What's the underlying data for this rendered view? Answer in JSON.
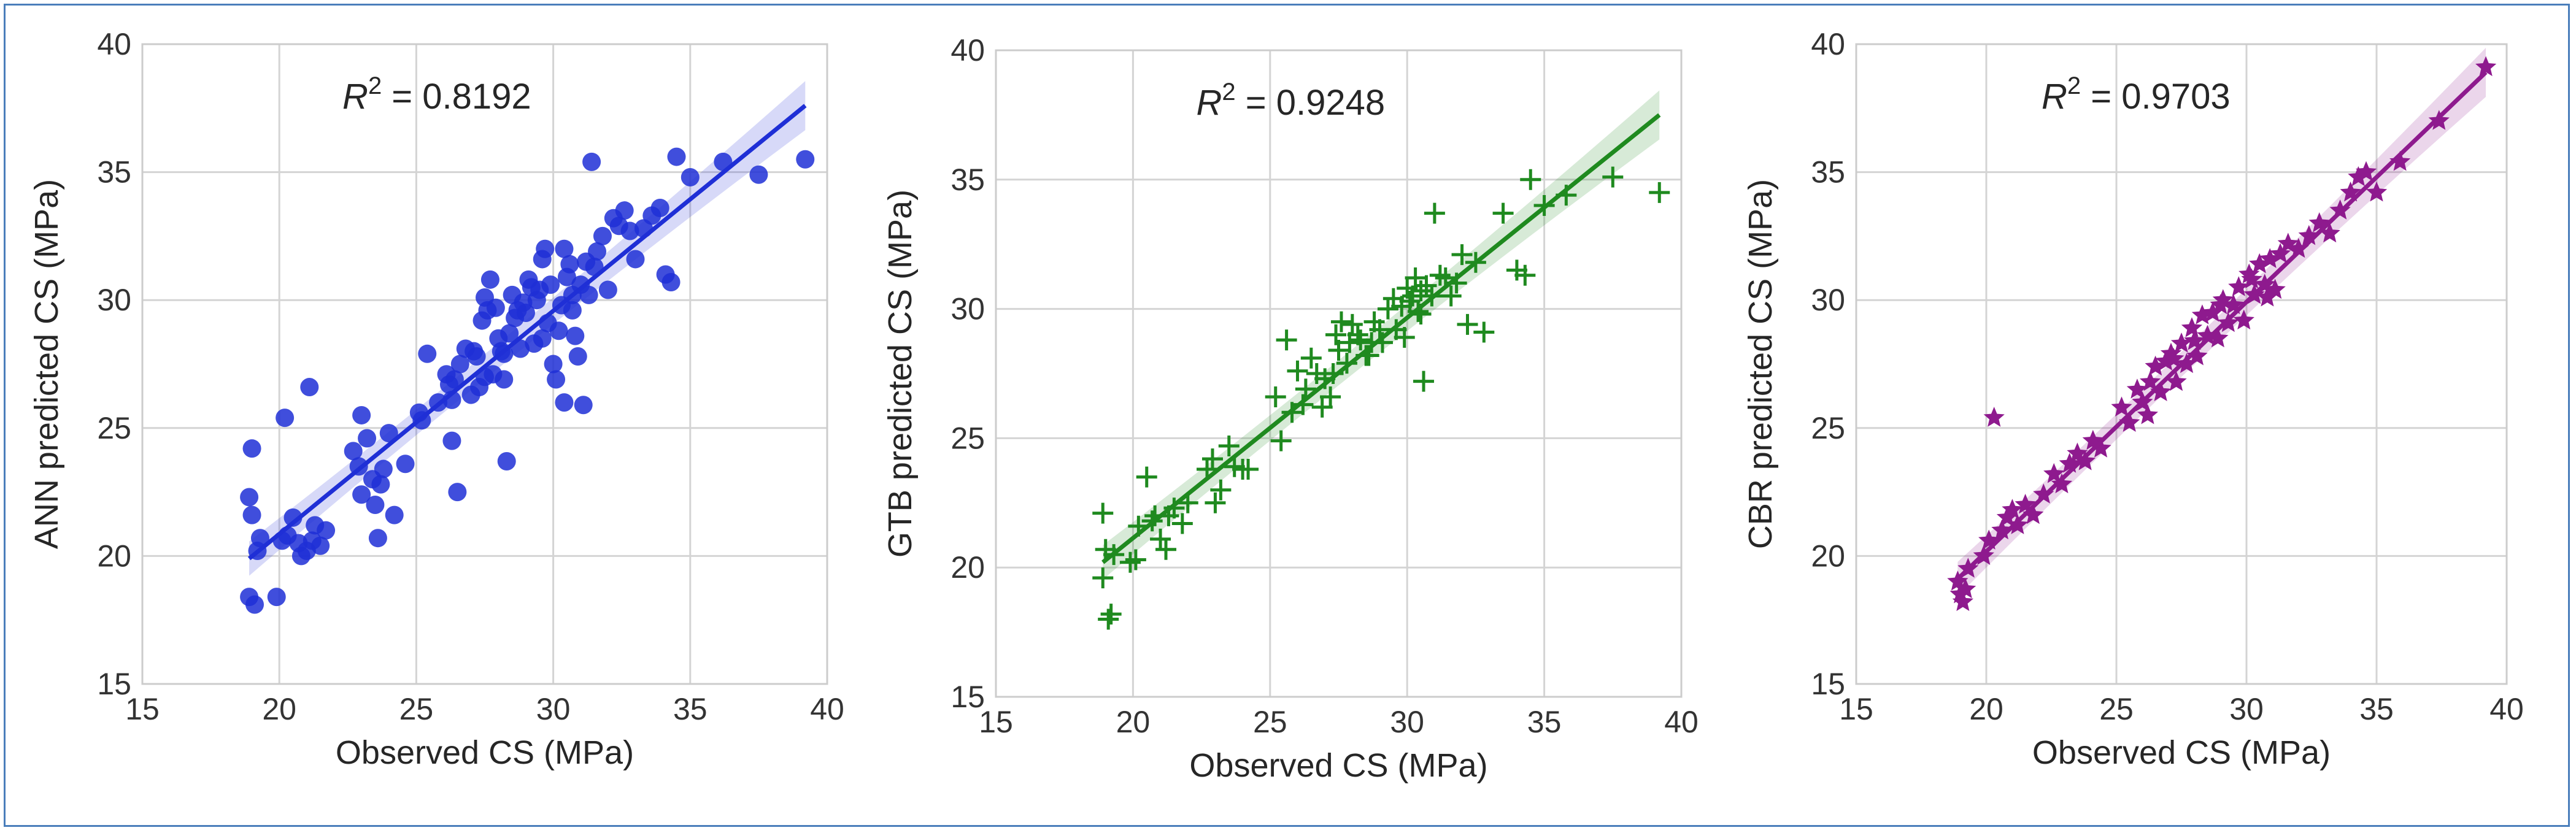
{
  "chart_data": [
    {
      "type": "scatter",
      "title": "",
      "annotation": "R² = 0.8192",
      "annotation_prefix": "R",
      "annotation_sup": "2",
      "annotation_value": " = 0.8192",
      "xlabel": "Observed CS (MPa)",
      "ylabel": "ANN predicted CS (MPa)",
      "xlim": [
        15,
        40
      ],
      "ylim": [
        15,
        40
      ],
      "xticks": [
        "15",
        "20",
        "25",
        "30",
        "35",
        "40"
      ],
      "yticks": [
        "15",
        "20",
        "25",
        "30",
        "35",
        "40"
      ],
      "grid": true,
      "marker": "circle",
      "color": "#1f2fd6",
      "fit_line": {
        "x": [
          18.9,
          39.2
        ],
        "y": [
          19.9,
          37.6
        ]
      },
      "x": [
        18.9,
        18.9,
        19.0,
        19.0,
        19.1,
        19.2,
        19.3,
        19.9,
        20.1,
        20.2,
        20.3,
        20.5,
        20.7,
        20.8,
        21.0,
        21.1,
        21.2,
        21.3,
        21.5,
        21.7,
        22.7,
        22.9,
        23.0,
        23.0,
        23.2,
        23.4,
        23.5,
        23.6,
        23.7,
        23.8,
        24.0,
        24.2,
        24.6,
        25.2,
        25.4,
        25.8,
        26.1,
        26.2,
        26.3,
        26.4,
        26.5,
        26.6,
        26.8,
        27.0,
        27.1,
        27.2,
        27.3,
        27.4,
        27.5,
        27.6,
        27.7,
        27.8,
        27.9,
        28.0,
        28.1,
        28.2,
        28.3,
        28.4,
        28.5,
        28.6,
        28.7,
        28.8,
        28.9,
        29.0,
        29.1,
        29.2,
        29.3,
        29.4,
        29.5,
        29.6,
        29.7,
        29.8,
        29.9,
        30.0,
        30.1,
        30.2,
        30.3,
        30.4,
        30.5,
        30.6,
        30.7,
        30.8,
        30.9,
        31.0,
        31.1,
        31.2,
        31.3,
        31.4,
        31.5,
        31.6,
        31.8,
        32.0,
        32.2,
        32.4,
        32.6,
        32.8,
        33.0,
        33.3,
        33.6,
        33.9,
        34.1,
        34.3,
        34.5,
        35.0,
        36.2,
        37.5,
        39.2,
        30.4,
        30.7,
        29.6,
        28.2,
        27.5,
        26.3,
        25.1
      ],
      "y": [
        18.4,
        22.3,
        21.6,
        24.2,
        18.1,
        20.2,
        20.7,
        18.4,
        20.6,
        25.4,
        20.8,
        21.5,
        20.5,
        20.0,
        20.2,
        26.6,
        20.6,
        21.2,
        20.4,
        21.0,
        24.1,
        23.5,
        25.5,
        22.4,
        24.6,
        23.0,
        22.0,
        20.7,
        22.8,
        23.4,
        24.8,
        21.6,
        23.6,
        25.3,
        27.9,
        26.0,
        27.1,
        26.7,
        24.5,
        26.9,
        22.5,
        27.5,
        28.1,
        26.3,
        28.0,
        27.8,
        26.6,
        29.2,
        30.1,
        29.6,
        30.8,
        27.1,
        29.7,
        28.5,
        28.0,
        26.9,
        23.7,
        28.7,
        30.2,
        29.3,
        29.6,
        28.1,
        29.9,
        29.5,
        30.8,
        30.5,
        28.3,
        30.0,
        30.4,
        31.6,
        32.0,
        29.1,
        30.6,
        27.5,
        26.9,
        28.8,
        29.8,
        32.0,
        30.9,
        31.4,
        30.2,
        28.6,
        27.8,
        30.6,
        25.9,
        31.5,
        30.2,
        35.4,
        31.3,
        31.9,
        32.5,
        30.4,
        33.2,
        32.9,
        33.5,
        32.7,
        31.6,
        32.8,
        33.3,
        33.6,
        31.0,
        30.7,
        35.6,
        34.8,
        35.4,
        34.9,
        35.5,
        26.0,
        29.6,
        28.5,
        27.9,
        27.0,
        26.1,
        25.6
      ]
    },
    {
      "type": "scatter",
      "title": "",
      "annotation": "R² = 0.9248",
      "annotation_prefix": "R",
      "annotation_sup": "2",
      "annotation_value": " = 0.9248",
      "xlabel": "Observed CS (MPa)",
      "ylabel": "GTB predicted CS (MPa)",
      "xlim": [
        15,
        40
      ],
      "ylim": [
        15,
        40
      ],
      "xticks": [
        "15",
        "20",
        "25",
        "30",
        "35",
        "40"
      ],
      "yticks": [
        "15",
        "20",
        "25",
        "30",
        "35",
        "40"
      ],
      "grid": true,
      "marker": "plus",
      "color": "#1f8a1f",
      "fit_line": {
        "x": [
          18.9,
          39.2
        ],
        "y": [
          20.2,
          37.5
        ]
      },
      "x": [
        18.9,
        18.9,
        19.0,
        19.1,
        19.2,
        19.3,
        19.9,
        20.1,
        20.2,
        20.5,
        20.7,
        20.8,
        21.0,
        21.2,
        21.3,
        21.5,
        21.8,
        22.0,
        22.7,
        22.9,
        23.0,
        23.2,
        23.5,
        23.7,
        24.0,
        24.2,
        25.2,
        25.4,
        25.6,
        25.8,
        26.0,
        26.2,
        26.3,
        26.5,
        26.7,
        26.9,
        27.0,
        27.2,
        27.4,
        27.5,
        27.6,
        27.8,
        27.9,
        28.0,
        28.2,
        28.3,
        28.5,
        28.7,
        28.8,
        29.0,
        29.1,
        29.3,
        29.5,
        29.6,
        29.8,
        30.0,
        30.1,
        30.2,
        30.3,
        30.4,
        30.5,
        30.6,
        30.7,
        30.9,
        31.0,
        31.2,
        31.4,
        31.6,
        31.8,
        32.0,
        32.2,
        32.5,
        32.8,
        33.5,
        34.0,
        34.3,
        34.5,
        35.0,
        35.8,
        37.5,
        39.2,
        30.5,
        29.9,
        28.6,
        27.3
      ],
      "y": [
        22.1,
        19.6,
        20.7,
        18.0,
        18.2,
        20.5,
        20.2,
        20.3,
        21.6,
        23.5,
        21.8,
        22.0,
        21.1,
        20.7,
        22.0,
        22.3,
        21.7,
        22.5,
        23.8,
        24.2,
        22.5,
        23.0,
        24.7,
        23.9,
        23.8,
        23.8,
        26.6,
        24.9,
        28.8,
        26.0,
        27.6,
        26.3,
        26.9,
        28.1,
        27.5,
        26.2,
        27.3,
        26.6,
        29.0,
        28.4,
        29.5,
        27.9,
        28.7,
        29.4,
        29.0,
        28.8,
        28.2,
        28.7,
        29.5,
        29.2,
        28.7,
        30.0,
        30.4,
        29.2,
        30.1,
        30.8,
        30.3,
        30.5,
        31.2,
        29.9,
        30.7,
        27.2,
        30.9,
        30.5,
        33.7,
        31.3,
        31.2,
        30.5,
        31.0,
        32.1,
        29.4,
        31.8,
        29.1,
        33.7,
        31.5,
        31.3,
        35.0,
        34.0,
        34.4,
        35.1,
        34.5,
        29.8,
        28.9,
        28.2,
        27.5
      ]
    },
    {
      "type": "scatter",
      "title": "",
      "annotation": "R² = 0.9703",
      "annotation_prefix": "R",
      "annotation_sup": "2",
      "annotation_value": " = 0.9703",
      "xlabel": "Observed CS (MPa)",
      "ylabel": "CBR predicted CS (MPa)",
      "xlim": [
        15,
        40
      ],
      "ylim": [
        15,
        40
      ],
      "xticks": [
        "15",
        "20",
        "25",
        "30",
        "35",
        "40"
      ],
      "yticks": [
        "15",
        "20",
        "25",
        "30",
        "35",
        "40"
      ],
      "grid": true,
      "marker": "star",
      "color": "#8e1a8e",
      "fit_line": {
        "x": [
          18.9,
          39.2
        ],
        "y": [
          19.1,
          38.9
        ]
      },
      "x": [
        18.9,
        19.0,
        19.1,
        19.2,
        19.3,
        19.9,
        20.1,
        20.3,
        20.6,
        20.8,
        21.0,
        21.2,
        21.5,
        21.8,
        22.2,
        22.6,
        22.9,
        23.2,
        23.5,
        23.8,
        24.1,
        24.4,
        25.2,
        25.5,
        25.8,
        26.0,
        26.3,
        26.5,
        26.7,
        26.9,
        27.1,
        27.3,
        27.5,
        27.7,
        27.9,
        28.1,
        28.3,
        28.5,
        28.7,
        28.9,
        29.1,
        29.3,
        29.5,
        29.7,
        29.9,
        30.1,
        30.3,
        30.5,
        30.7,
        30.9,
        31.1,
        31.3,
        31.6,
        32.0,
        32.4,
        32.8,
        33.2,
        33.6,
        34.0,
        34.3,
        34.6,
        35.0,
        35.9,
        37.4,
        39.2,
        29.0,
        28.0,
        27.2,
        26.2,
        30.2,
        30.8
      ],
      "y": [
        19.0,
        18.5,
        18.2,
        18.7,
        19.5,
        20.0,
        20.6,
        25.4,
        21.0,
        21.5,
        21.8,
        21.2,
        22.0,
        21.6,
        22.4,
        23.2,
        22.8,
        23.6,
        24.0,
        23.7,
        24.5,
        24.2,
        25.8,
        25.2,
        26.5,
        26.0,
        26.8,
        27.4,
        26.4,
        27.6,
        27.9,
        26.8,
        28.3,
        27.5,
        28.9,
        27.8,
        29.4,
        28.6,
        29.5,
        28.5,
        30.0,
        29.1,
        29.8,
        30.5,
        29.2,
        31.0,
        30.2,
        31.4,
        30.6,
        31.6,
        30.4,
        31.8,
        32.2,
        32.0,
        32.5,
        33.0,
        32.6,
        33.5,
        34.2,
        34.8,
        35.0,
        34.2,
        35.4,
        37.0,
        39.1,
        29.8,
        28.4,
        27.7,
        25.5,
        30.8,
        30.1
      ]
    }
  ]
}
